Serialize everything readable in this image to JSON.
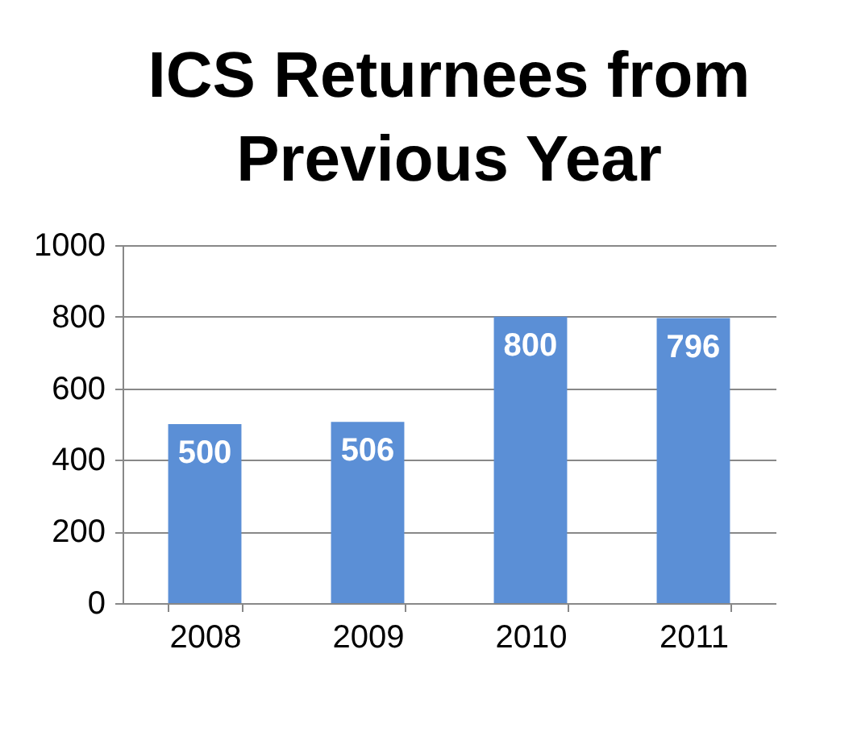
{
  "chart_data": {
    "type": "bar",
    "title": "ICS Returnees from Previous Year",
    "categories": [
      "2008",
      "2009",
      "2010",
      "2011"
    ],
    "values": [
      500,
      506,
      800,
      796
    ],
    "color": "#5b8fd6",
    "ylim": [
      0,
      1000
    ],
    "yticks": [
      0,
      200,
      400,
      600,
      800,
      1000
    ],
    "grid": "y",
    "data_labels": true
  }
}
